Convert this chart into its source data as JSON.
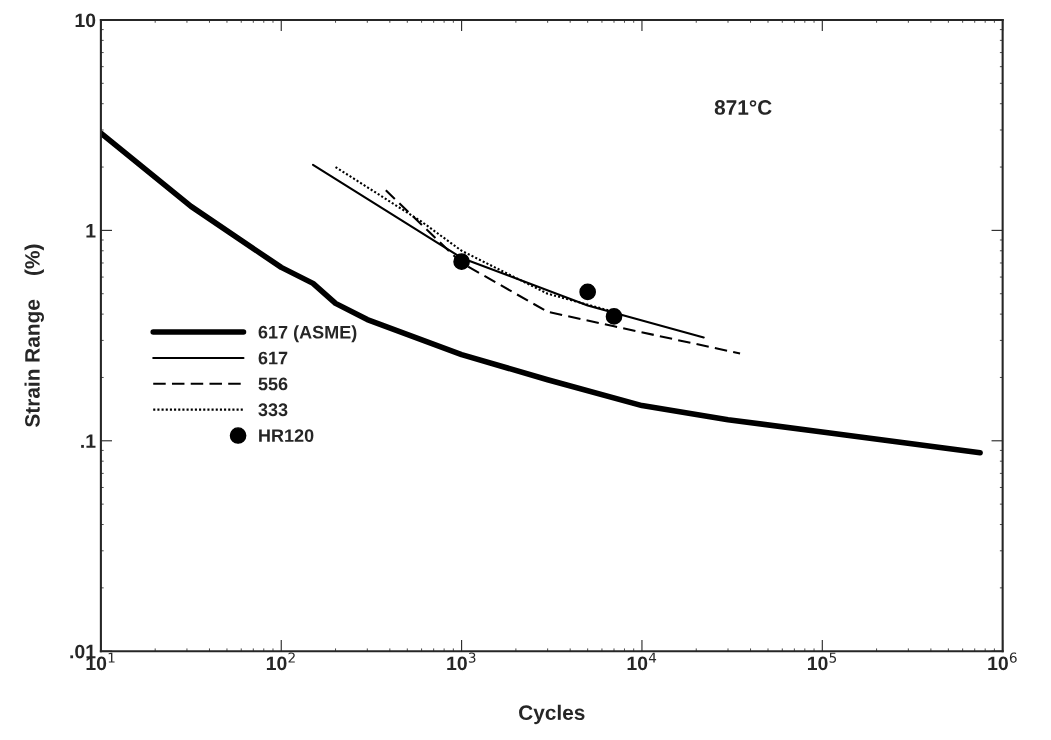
{
  "chart_data": {
    "type": "line",
    "xlabel": "Cycles",
    "ylabel": "Strain Range    (%)",
    "log": "xy",
    "xlim": [
      10,
      1000000
    ],
    "ylim": [
      0.01,
      10
    ],
    "xticks": [
      {
        "value": 10,
        "label": "10$^{1}$"
      },
      {
        "value": 100,
        "label": "10$^{2}$"
      },
      {
        "value": 1000,
        "label": "10$^{3}$"
      },
      {
        "value": 10000,
        "label": "10$^{4}$"
      },
      {
        "value": 100000,
        "label": "10$^{5}$"
      },
      {
        "value": 1000000,
        "label": "10$^{6}$"
      }
    ],
    "yticks": [
      {
        "value": 0.01,
        "label": ".01"
      },
      {
        "value": 0.1,
        "label": ".1"
      },
      1,
      10
    ],
    "grid": false,
    "legend": "bottom left",
    "annotations": [
      "871°C"
    ],
    "series": [
      {
        "name": "617 (ASME)",
        "color": "#000000",
        "line_style": "solid",
        "x": [
          10,
          31.6,
          100,
          150,
          200,
          300,
          1000,
          3000,
          10000,
          30000,
          100000,
          750000
        ],
        "values": [
          2.9,
          1.3,
          0.667,
          0.56,
          0.45,
          0.377,
          0.257,
          0.195,
          0.147,
          0.126,
          0.11,
          0.0877
        ]
      },
      {
        "name": "617",
        "color": "#000000",
        "line_style": "solid",
        "x": [
          150,
          1000,
          5000,
          22000
        ],
        "values": [
          2.05,
          0.74,
          0.44,
          0.31
        ]
      },
      {
        "name": "556",
        "color": "#000000",
        "line_style": "dashed",
        "x": [
          380,
          1000,
          3000,
          7000,
          35000
        ],
        "values": [
          1.55,
          0.7,
          0.41,
          0.35,
          0.26
        ]
      },
      {
        "name": "333",
        "color": "#000000",
        "line_style": "dotted",
        "x": [
          200,
          600,
          1000,
          3000,
          7000
        ],
        "values": [
          2.0,
          1.1,
          0.8,
          0.5,
          0.41
        ]
      },
      {
        "name": "HR120",
        "color": "#000000",
        "type": "scatter",
        "marker": "circle",
        "x": [
          1000,
          5000,
          7000
        ],
        "values": [
          0.71,
          0.51,
          0.39
        ]
      }
    ]
  }
}
